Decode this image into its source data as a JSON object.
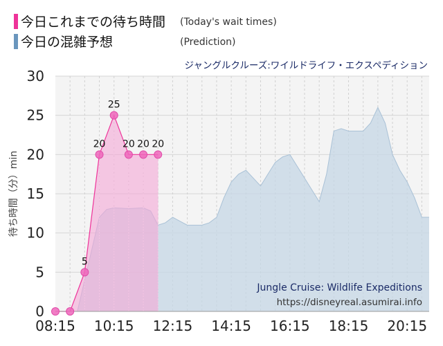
{
  "legend": {
    "today_label": "今日これまでの待ち時間",
    "today_sub": "(Today's wait times)",
    "prediction_label": "今日の混雑予想",
    "prediction_sub": "(Prediction)"
  },
  "attraction_jp": "ジャングルクルーズ:ワイルドライフ・エクスペディション",
  "attraction_en": "Jungle Cruise: Wildlife Expeditions",
  "source_url": "https://disneyreal.asumirai.info",
  "colors": {
    "today": "#ee3399",
    "today_fill": "#f4a6d5",
    "prediction": "#6a96bd",
    "prediction_fill": "#c6d7e6",
    "overlap_fill": "#cfa3cf"
  },
  "chart_data": {
    "type": "area",
    "title": "ジャングルクルーズ:ワイルドライフ・エクスペディション",
    "ylabel": "待ち時間（分）min",
    "xlabel": "",
    "ylim": [
      0,
      30
    ],
    "yticks": [
      "0",
      "5",
      "10",
      "15",
      "20",
      "25",
      "30"
    ],
    "xlim": [
      "08:15",
      "21:00"
    ],
    "xticks": [
      "08:15",
      "10:15",
      "12:15",
      "14:15",
      "16:15",
      "18:15",
      "20:15"
    ],
    "grid": true,
    "series": [
      {
        "name": "今日これまでの待ち時間",
        "type": "area-markers",
        "x": [
          "08:15",
          "08:45",
          "09:15",
          "09:45",
          "10:15",
          "10:45",
          "11:15",
          "11:45"
        ],
        "values": [
          0,
          0,
          5,
          20,
          25,
          20,
          20,
          20
        ],
        "labels": [
          "",
          "",
          "5",
          "20",
          "25",
          "20",
          "20",
          "20"
        ]
      },
      {
        "name": "今日の混雑予想",
        "type": "area",
        "x": [
          "08:15",
          "08:45",
          "09:00",
          "09:15",
          "09:30",
          "09:45",
          "10:00",
          "10:15",
          "10:45",
          "11:15",
          "11:30",
          "11:45",
          "12:00",
          "12:15",
          "12:30",
          "12:45",
          "13:15",
          "13:30",
          "13:45",
          "14:00",
          "14:15",
          "14:30",
          "14:45",
          "15:00",
          "15:15",
          "15:30",
          "15:45",
          "16:00",
          "16:15",
          "16:30",
          "16:45",
          "17:00",
          "17:15",
          "17:30",
          "17:45",
          "18:00",
          "18:15",
          "18:30",
          "18:45",
          "19:00",
          "19:15",
          "19:30",
          "19:45",
          "20:00",
          "20:15",
          "20:30",
          "20:45",
          "21:00"
        ],
        "values": [
          0,
          0,
          0,
          4,
          8,
          12,
          13,
          13.2,
          13.1,
          13.2,
          12.8,
          11,
          11.3,
          12,
          11.5,
          11,
          11,
          11.3,
          12,
          14.5,
          16.5,
          17.5,
          18,
          17,
          16,
          17.5,
          19,
          19.7,
          20,
          18.5,
          17,
          15.5,
          14,
          17.5,
          23,
          23.3,
          23,
          23,
          23,
          24,
          26,
          24,
          20,
          18,
          16.5,
          14.5,
          12,
          12
        ]
      }
    ]
  }
}
